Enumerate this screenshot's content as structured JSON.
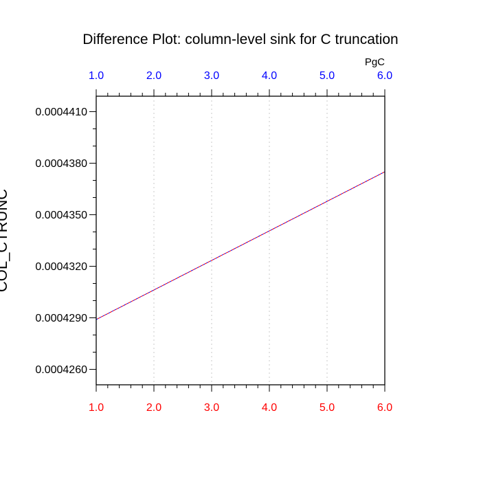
{
  "chart_data": {
    "type": "line",
    "title": "Difference Plot: column-level sink for C truncation",
    "ylabel": "COL_CTRUNC",
    "top_axis_units": "PgC",
    "x": [
      1.0,
      6.0
    ],
    "xlim": [
      1.0,
      6.0
    ],
    "ylim": [
      0.0004251,
      0.0004419
    ],
    "x_ticks": [
      1.0,
      2.0,
      3.0,
      4.0,
      5.0,
      6.0
    ],
    "x_tick_labels": [
      "1.0",
      "2.0",
      "3.0",
      "4.0",
      "5.0",
      "6.0"
    ],
    "y_ticks": [
      0.000426,
      0.000429,
      0.000432,
      0.000435,
      0.000438,
      0.000441
    ],
    "y_tick_labels": [
      "0.0004260",
      "0.0004290",
      "0.0004320",
      "0.0004350",
      "0.0004380",
      "0.0004410"
    ],
    "vertical_grid": true,
    "series": [
      {
        "values": [
          0.0004289,
          0.0004375
        ],
        "color": "#0000ff",
        "dash": "dashed"
      },
      {
        "values": [
          0.0004289,
          0.0004375
        ],
        "color": "#ff0000",
        "dash": "dashed"
      }
    ],
    "colors": {
      "bottom_axis": "#ff0000",
      "top_axis": "#0000ff",
      "grid": "#c8c8c8",
      "frame": "#000000"
    }
  }
}
